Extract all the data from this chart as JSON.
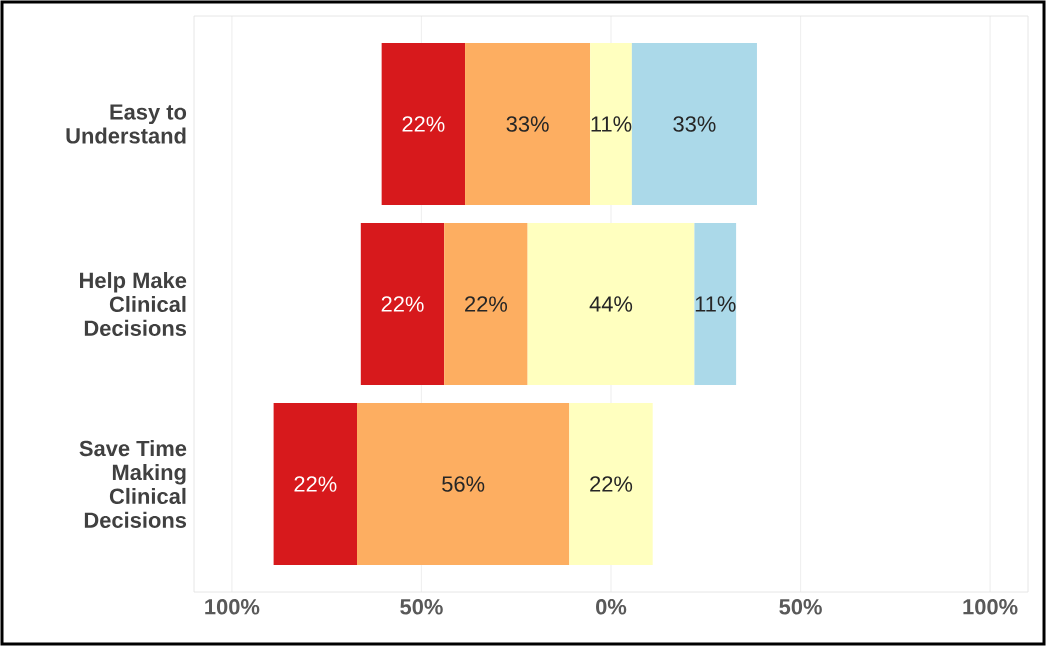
{
  "chart_data": {
    "type": "bar",
    "orientation": "horizontal",
    "categories": [
      "Easy to Understand",
      "Help Make Clinical Decisions",
      "Save Time Making Clinical Decisions"
    ],
    "series": [
      {
        "color": "#d7191c",
        "base": [
          -60.5,
          -66,
          -89
        ],
        "values": [
          22,
          22,
          22
        ],
        "value_labels": [
          "22%",
          "22%",
          "22%"
        ]
      },
      {
        "color": "#fdae61",
        "base": [
          -38.5,
          -44,
          -67
        ],
        "values": [
          33,
          22,
          56
        ],
        "value_labels": [
          "33%",
          "22%",
          "56%"
        ]
      },
      {
        "color": "#ffffbf",
        "base": [
          -5.5,
          -22,
          -11
        ],
        "values": [
          11,
          44,
          22
        ],
        "value_labels": [
          "11%",
          "44%",
          "22%"
        ]
      },
      {
        "color": "#abd9e9",
        "base": [
          5.5,
          22,
          null
        ],
        "values": [
          33,
          11,
          null
        ],
        "value_labels": [
          "33%",
          "11%",
          null
        ]
      }
    ],
    "xlim": [
      -110,
      110
    ],
    "xticks": [
      {
        "value": -100,
        "label": "100%"
      },
      {
        "value": -50,
        "label": "50%"
      },
      {
        "value": 0,
        "label": "0%"
      },
      {
        "value": 50,
        "label": "50%"
      },
      {
        "value": 100,
        "label": "100%"
      }
    ],
    "grid": "x"
  }
}
